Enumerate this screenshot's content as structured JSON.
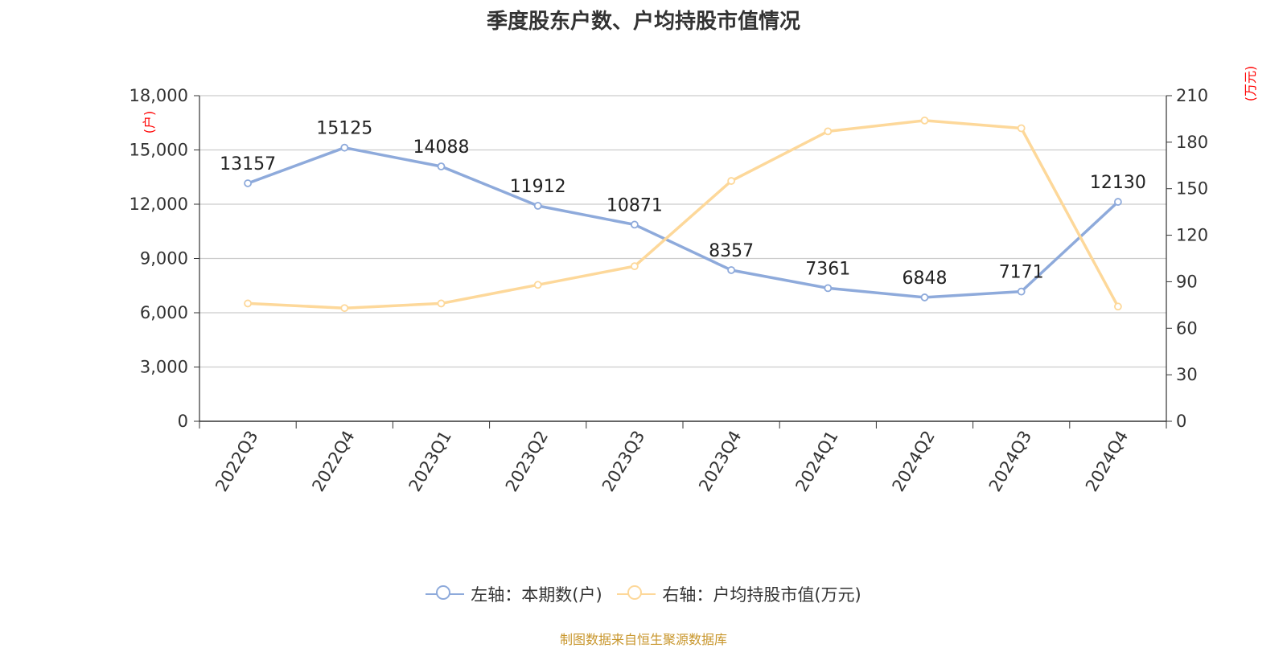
{
  "chart_data": {
    "type": "line",
    "title": "季度股东户数、户均持股市值情况",
    "categories": [
      "2022Q3",
      "2022Q4",
      "2023Q1",
      "2023Q2",
      "2023Q3",
      "2023Q4",
      "2024Q1",
      "2024Q2",
      "2024Q3",
      "2024Q4"
    ],
    "left_axis": {
      "unit": "(户)",
      "ylim": [
        0,
        18000
      ],
      "ticks": [
        0,
        3000,
        6000,
        9000,
        12000,
        15000,
        18000
      ],
      "tick_labels": [
        "0",
        "3,000",
        "6,000",
        "9,000",
        "12,000",
        "15,000",
        "18,000"
      ]
    },
    "right_axis": {
      "unit": "(万元)",
      "ylim": [
        0,
        210
      ],
      "ticks": [
        0,
        30,
        60,
        90,
        120,
        150,
        180,
        210
      ],
      "tick_labels": [
        "0",
        "30",
        "60",
        "90",
        "120",
        "150",
        "180",
        "210"
      ]
    },
    "series": [
      {
        "name": "左轴：本期数(户)",
        "axis": "left",
        "color": "#8eaadb",
        "values": [
          13157,
          15125,
          14088,
          11912,
          10871,
          8357,
          7361,
          6848,
          7171,
          12130
        ],
        "data_labels": [
          "13157",
          "15125",
          "14088",
          "11912",
          "10871",
          "8357",
          "7361",
          "6848",
          "7171",
          "12130"
        ]
      },
      {
        "name": "右轴：户均持股市值(万元)",
        "axis": "right",
        "color": "#fdd89a",
        "values": [
          76,
          73,
          76,
          88,
          100,
          155,
          187,
          194,
          189,
          74
        ]
      }
    ],
    "grid": true,
    "legend_position": "bottom"
  },
  "source_note": "制图数据来自恒生聚源数据库"
}
